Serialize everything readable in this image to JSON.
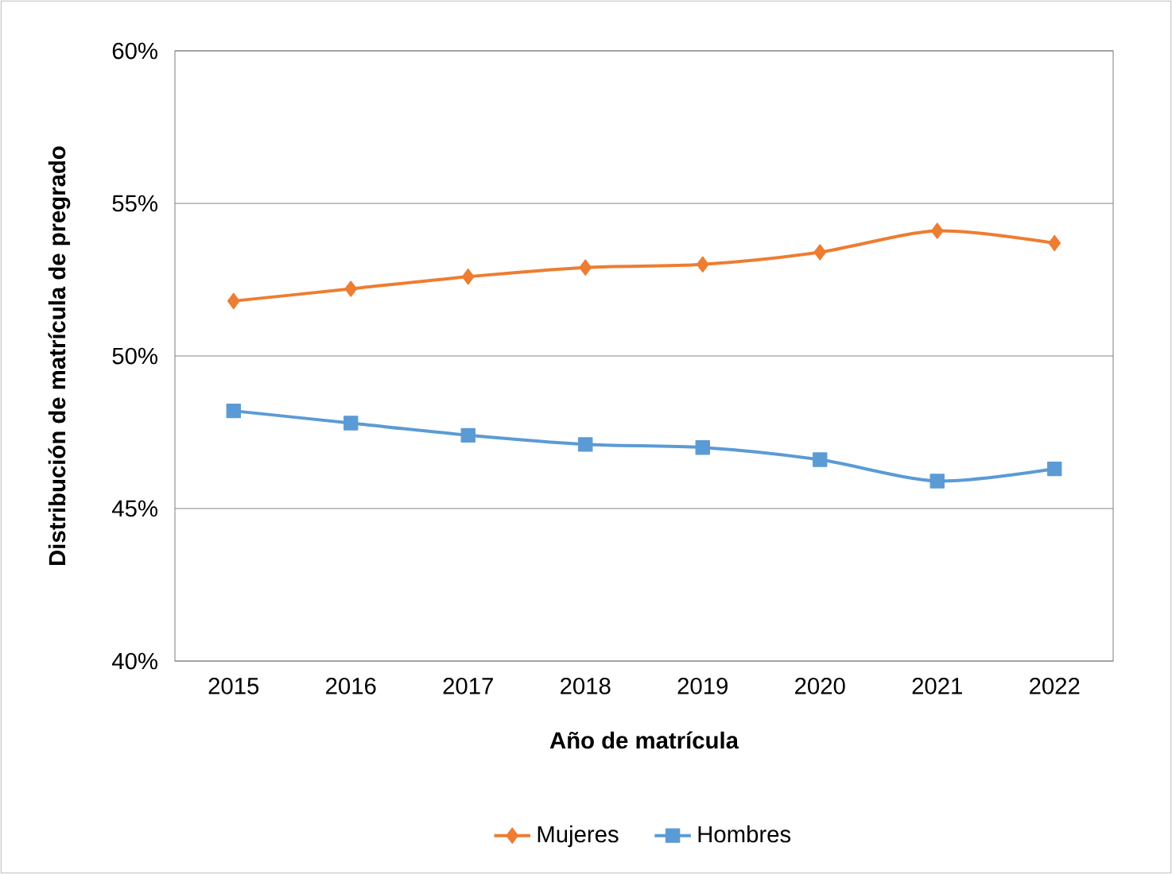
{
  "chart_data": {
    "type": "line",
    "xlabel": "Año de matrícula",
    "ylabel": "Distribución de matrícula de pregrado",
    "categories": [
      "2015",
      "2016",
      "2017",
      "2018",
      "2019",
      "2020",
      "2021",
      "2022"
    ],
    "series": [
      {
        "name": "Mujeres",
        "color": "#ed7d31",
        "marker": "diamond",
        "values": [
          51.8,
          52.2,
          52.6,
          52.9,
          53.0,
          53.4,
          54.1,
          53.7
        ]
      },
      {
        "name": "Hombres",
        "color": "#5b9bd5",
        "marker": "square",
        "values": [
          48.2,
          47.8,
          47.4,
          47.1,
          47.0,
          46.6,
          45.9,
          46.3
        ]
      }
    ],
    "ylim": [
      40,
      60
    ],
    "yticks": [
      {
        "value": 40,
        "label": "40%"
      },
      {
        "value": 45,
        "label": "45%"
      },
      {
        "value": 50,
        "label": "50%"
      },
      {
        "value": 55,
        "label": "55%"
      },
      {
        "value": 60,
        "label": "60%"
      }
    ],
    "grid": "y",
    "legend": "bottom",
    "line_style": "solid"
  }
}
